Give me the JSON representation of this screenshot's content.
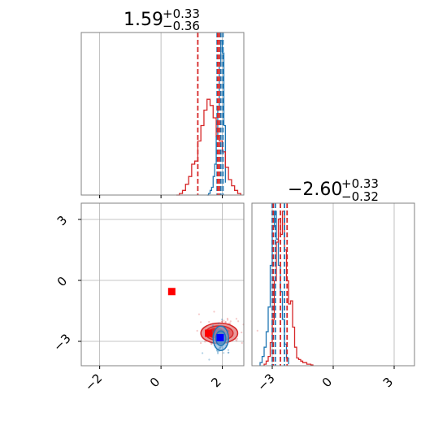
{
  "chart_data": {
    "type": "corner",
    "grid": true,
    "colors": {
      "blue": "#1f77b4",
      "red": "#d62728",
      "marker_red": "#ff0000",
      "marker_blue": "#0000ff",
      "grid": "#b0b0b0",
      "frame": "#808080"
    },
    "titles": [
      {
        "main": "1.59",
        "sup": "+0.33",
        "sub": "−0.36"
      },
      {
        "main": "−2.60",
        "sup": "+0.33",
        "sub": "−0.32"
      }
    ],
    "x_ticks": {
      "values": [
        -2,
        0,
        2
      ],
      "labels": [
        "−2",
        "0",
        "2"
      ]
    },
    "y_ticks": {
      "values": [
        3,
        0,
        -3
      ],
      "labels": [
        "3",
        "0",
        "−3"
      ]
    },
    "p2_x_ticks": {
      "values": [
        -3,
        0,
        3
      ],
      "labels": [
        "−3",
        "0",
        "3"
      ]
    },
    "xlim_param1": [
      -2.6,
      2.7
    ],
    "xlim_param2": [
      -4.0,
      4.0
    ],
    "ylim_param2": [
      -4.2,
      3.8
    ],
    "series": [
      {
        "name": "",
        "color": "#1f77b4",
        "quantiles_param1": [
          1.83,
          1.95,
          2.02
        ],
        "quantiles_param2": [
          -3.0,
          -2.85,
          -2.4
        ],
        "hist_param1": {
          "edges": [
            1.5,
            1.55,
            1.6,
            1.65,
            1.7,
            1.75,
            1.8,
            1.85,
            1.9,
            1.95,
            2.0,
            2.05,
            2.1
          ],
          "counts": [
            0.0,
            0.01,
            0.03,
            0.05,
            0.12,
            0.2,
            0.38,
            0.55,
            0.85,
            1.0,
            0.92,
            0.45,
            0.08
          ]
        },
        "hist_param2": {
          "edges": [
            -3.6,
            -3.5,
            -3.4,
            -3.3,
            -3.2,
            -3.1,
            -3.0,
            -2.9,
            -2.8,
            -2.7,
            -2.6,
            -2.5,
            -2.4,
            -2.3,
            -2.2
          ],
          "counts": [
            0.02,
            0.06,
            0.12,
            0.22,
            0.38,
            0.65,
            0.9,
            1.0,
            0.82,
            0.65,
            0.48,
            0.3,
            0.14,
            0.05,
            0.01
          ]
        }
      },
      {
        "name": "",
        "color": "#d62728",
        "quantiles_param1": [
          1.2,
          1.85,
          1.9
        ],
        "quantiles_param2": [
          -2.95,
          -2.6,
          -2.27
        ],
        "hist_param1": {
          "edges": [
            0.5,
            0.6,
            0.7,
            0.8,
            0.9,
            1.0,
            1.1,
            1.2,
            1.3,
            1.4,
            1.5,
            1.6,
            1.7,
            1.8,
            1.9,
            2.0,
            2.1,
            2.2,
            2.3,
            2.4,
            2.5,
            2.6
          ],
          "counts": [
            0.0,
            0.01,
            0.03,
            0.07,
            0.12,
            0.2,
            0.22,
            0.35,
            0.45,
            0.55,
            0.62,
            0.58,
            0.5,
            0.38,
            0.35,
            0.28,
            0.18,
            0.1,
            0.06,
            0.03,
            0.01
          ]
        },
        "hist_param2": {
          "edges": [
            -3.4,
            -3.3,
            -3.2,
            -3.1,
            -3.0,
            -2.9,
            -2.8,
            -2.7,
            -2.6,
            -2.5,
            -2.4,
            -2.3,
            -2.2,
            -2.1,
            -2.0,
            -1.9,
            -1.8,
            -1.7,
            -1.6,
            -1.5,
            -1.4,
            -1.3,
            -1.2,
            -1.1,
            -1.0
          ],
          "counts": [
            0.01,
            0.03,
            0.06,
            0.15,
            0.3,
            0.55,
            0.8,
            0.95,
            0.85,
            1.0,
            0.75,
            0.55,
            0.4,
            0.42,
            0.25,
            0.12,
            0.05,
            0.04,
            0.03,
            0.02,
            0.02,
            0.01,
            0.01,
            0.005,
            0.0
          ]
        }
      }
    ],
    "markers": [
      {
        "color": "#ff0000",
        "x": 0.35,
        "y": -0.55
      },
      {
        "color": "#ff0000",
        "x": 1.55,
        "y": -2.6
      },
      {
        "color": "#0000ff",
        "x": 1.93,
        "y": -2.82
      }
    ]
  }
}
